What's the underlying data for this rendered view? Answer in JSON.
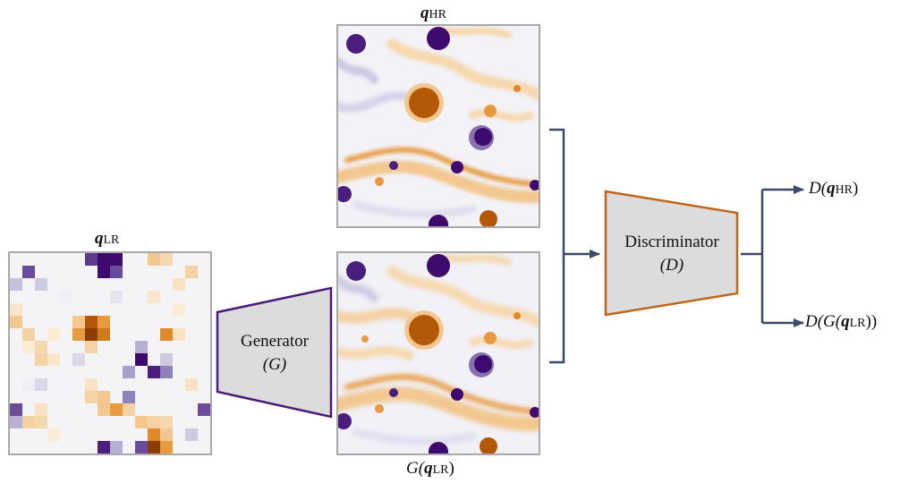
{
  "labels": {
    "q_hr": {
      "sym": "q",
      "sub": "HR"
    },
    "q_lr": {
      "sym": "q",
      "sub": "LR"
    },
    "g_out": {
      "pre": "G(",
      "sym": "q",
      "sub": "LR",
      "post": ")"
    },
    "d_hr": {
      "pre": "D(",
      "sym": "q",
      "sub": "HR",
      "post": ")"
    },
    "d_g": {
      "pre": "D(G(",
      "sym": "q",
      "sub": "LR",
      "post": "))"
    }
  },
  "generator": {
    "name": "Generator",
    "symbol": "(G)"
  },
  "discriminator": {
    "name": "Discriminator",
    "symbol": "(D)"
  },
  "colors": {
    "frame": "#a9a9a9",
    "generator_border": "#4b1a7a",
    "discriminator_border": "#c0661a",
    "block_fill": "#dcdcdc",
    "wire": "#3b4a68",
    "positive": "#b35806",
    "negative": "#3f0a6e"
  }
}
